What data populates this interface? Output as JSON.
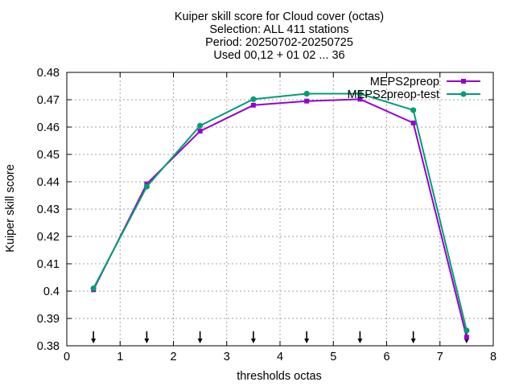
{
  "chart_data": {
    "type": "line",
    "title": [
      "Kuiper skill score  for Cloud cover (octas)",
      "Selection: ALL    411 stations",
      "Period: 20250702-20250725",
      "Used 00,12 + 01 02 ... 36"
    ],
    "xlabel": "thresholds octas",
    "ylabel": "Kuiper skill score",
    "xlim": [
      0,
      8
    ],
    "ylim": [
      0.38,
      0.48
    ],
    "xticks": [
      0,
      1,
      2,
      3,
      4,
      5,
      6,
      7,
      8
    ],
    "xtick_labels": [
      "0",
      "1",
      "2",
      "3",
      "4",
      "5",
      "6",
      "7",
      "8"
    ],
    "yticks": [
      0.38,
      0.39,
      0.4,
      0.41,
      0.42,
      0.43,
      0.44,
      0.45,
      0.46,
      0.47,
      0.48
    ],
    "ytick_labels": [
      "0.38",
      "0.39",
      "0.4",
      "0.41",
      "0.42",
      "0.43",
      "0.44",
      "0.45",
      "0.46",
      "0.47",
      "0.48"
    ],
    "grid": true,
    "legend_position": "top-right",
    "x": [
      0.5,
      1.5,
      2.5,
      3.5,
      4.5,
      5.5,
      6.5,
      7.5
    ],
    "series": [
      {
        "name": "MEPS2preop",
        "color": "#9400d3",
        "marker": "square",
        "values": [
          0.4005,
          0.4392,
          0.4585,
          0.468,
          0.4695,
          0.4702,
          0.4615,
          0.3831
        ]
      },
      {
        "name": "MEPS2preop-test",
        "color": "#009e73",
        "marker": "circle",
        "values": [
          0.401,
          0.4382,
          0.4605,
          0.4702,
          0.4722,
          0.4722,
          0.4662,
          0.3856
        ]
      }
    ],
    "arrow_markers_x": [
      0.5,
      1.5,
      2.5,
      3.5,
      4.5,
      5.5,
      6.5,
      7.5
    ]
  }
}
